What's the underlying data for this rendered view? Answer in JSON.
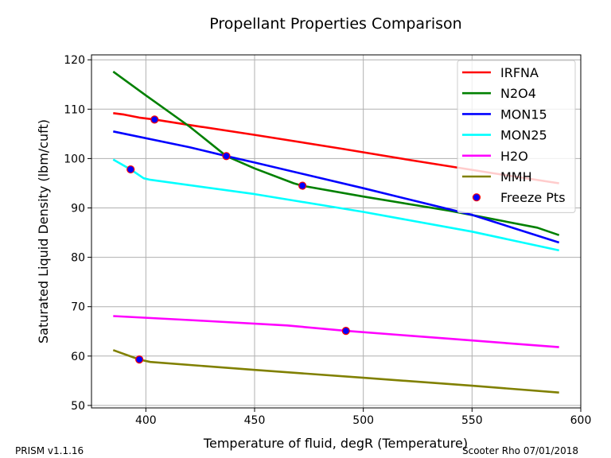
{
  "footer": {
    "left": "PRISM v1.1.16",
    "right": "Scooter Rho 07/01/2018"
  },
  "chart_data": {
    "type": "line",
    "title": "Propellant Properties Comparison",
    "xlabel": "Temperature of fluid, degR (Temperature)",
    "ylabel": "Saturated Liquid Density (lbm/cuft)",
    "xlim": [
      375,
      600
    ],
    "ylim": [
      49.5,
      121
    ],
    "xticks": [
      400,
      450,
      500,
      550,
      600
    ],
    "yticks": [
      50,
      60,
      70,
      80,
      90,
      100,
      110,
      120
    ],
    "grid": true,
    "legend_position": "top-right",
    "series": [
      {
        "name": "IRFNA",
        "color": "#ff0000",
        "points": [
          [
            385,
            109.2
          ],
          [
            390,
            108.9
          ],
          [
            397,
            108.3
          ],
          [
            404,
            107.9
          ],
          [
            420,
            106.8
          ],
          [
            450,
            104.8
          ],
          [
            490,
            102.0
          ],
          [
            520,
            99.8
          ],
          [
            560,
            97.0
          ],
          [
            590,
            95.0
          ]
        ]
      },
      {
        "name": "N2O4",
        "color": "#008000",
        "points": [
          [
            385,
            117.6
          ],
          [
            400,
            112.8
          ],
          [
            420,
            106.5
          ],
          [
            437,
            100.5
          ],
          [
            450,
            98.0
          ],
          [
            468,
            95.0
          ],
          [
            472,
            94.5
          ],
          [
            500,
            92.3
          ],
          [
            540,
            89.4
          ],
          [
            580,
            86.0
          ],
          [
            590,
            84.5
          ]
        ]
      },
      {
        "name": "MON15",
        "color": "#0000ff",
        "points": [
          [
            385,
            105.5
          ],
          [
            420,
            102.3
          ],
          [
            437,
            100.5
          ],
          [
            450,
            99.2
          ],
          [
            500,
            94.0
          ],
          [
            550,
            88.6
          ],
          [
            590,
            83.0
          ]
        ]
      },
      {
        "name": "MON25",
        "color": "#00ffff",
        "points": [
          [
            385,
            99.8
          ],
          [
            393,
            97.8
          ],
          [
            399,
            96.0
          ],
          [
            402,
            95.7
          ],
          [
            450,
            92.8
          ],
          [
            500,
            89.2
          ],
          [
            550,
            85.2
          ],
          [
            590,
            81.4
          ]
        ]
      },
      {
        "name": "H2O",
        "color": "#ff00ff",
        "points": [
          [
            385,
            68.1
          ],
          [
            420,
            67.3
          ],
          [
            465,
            66.2
          ],
          [
            492,
            65.1
          ],
          [
            540,
            63.5
          ],
          [
            590,
            61.8
          ]
        ]
      },
      {
        "name": "MMH",
        "color": "#808000",
        "points": [
          [
            385,
            61.2
          ],
          [
            397,
            59.3
          ],
          [
            402,
            58.8
          ],
          [
            450,
            57.2
          ],
          [
            500,
            55.6
          ],
          [
            550,
            54.0
          ],
          [
            590,
            52.6
          ]
        ]
      }
    ],
    "freeze_points": {
      "name": "Freeze Pts",
      "fill": "#0000ff",
      "edge": "#ff0000",
      "points": [
        [
          404,
          107.9
        ],
        [
          437,
          100.5
        ],
        [
          472,
          94.5
        ],
        [
          393,
          97.8
        ],
        [
          492,
          65.1
        ],
        [
          397,
          59.3
        ]
      ]
    }
  }
}
